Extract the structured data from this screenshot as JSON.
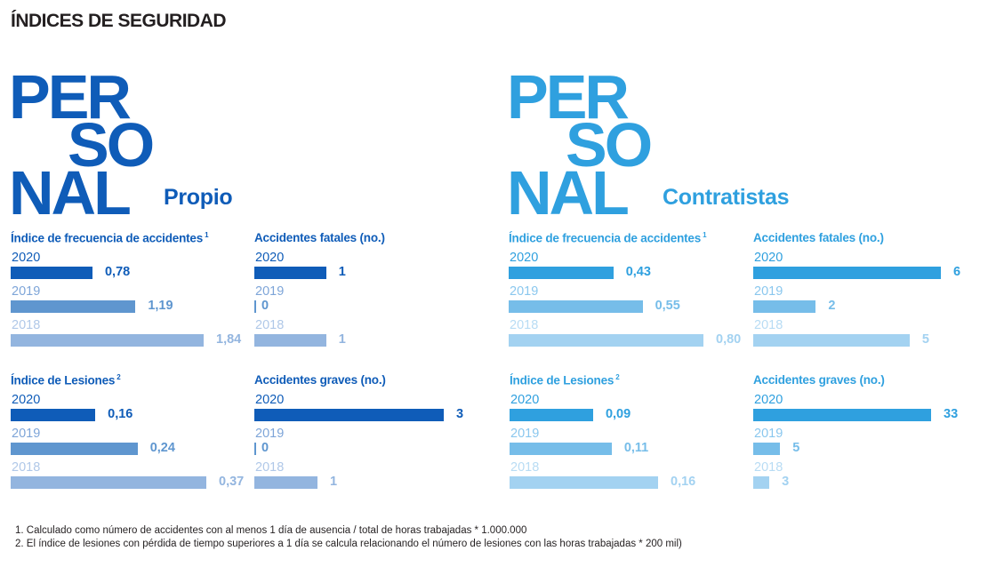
{
  "page": {
    "title": "ÍNDICES DE SEGURIDAD"
  },
  "colors": {
    "propio": [
      "#0f5cb8",
      "#5f96cf",
      "#93b5df"
    ],
    "contratistas": [
      "#2fa0df",
      "#76bde9",
      "#a3d2f1"
    ],
    "propio_year": [
      "#0f5cb8",
      "#7ea5d8",
      "#b0c8e8"
    ],
    "contratistas_year": [
      "#2fa0df",
      "#8ac7ee",
      "#b8dcf4"
    ]
  },
  "panels": [
    {
      "id": "propio",
      "big_word": [
        "PER",
        "SO",
        "NAL"
      ],
      "subtitle": "Propio",
      "color": "#0f5cb8"
    },
    {
      "id": "contratistas",
      "big_word": [
        "PER",
        "SO",
        "NAL"
      ],
      "subtitle": "Contratistas",
      "color": "#2fa0df"
    }
  ],
  "chart_data": [
    {
      "type": "bar",
      "panel": "Propio",
      "title": "Índice de frecuencia de accidentes",
      "footnote_mark": "1",
      "categories": [
        "2020",
        "2019",
        "2018"
      ],
      "values": [
        0.78,
        1.19,
        1.84
      ],
      "labels": [
        "0,78",
        "1,19",
        "1,84"
      ],
      "xlim": [
        0,
        1.84
      ]
    },
    {
      "type": "bar",
      "panel": "Propio",
      "title": "Accidentes fatales (no.)",
      "footnote_mark": "",
      "categories": [
        "2020",
        "2019",
        "2018"
      ],
      "values": [
        1,
        0,
        1
      ],
      "labels": [
        "1",
        "0",
        "1"
      ],
      "xlim": [
        0,
        2.6
      ]
    },
    {
      "type": "bar",
      "panel": "Propio",
      "title": "Índice de Lesiones",
      "footnote_mark": "2",
      "categories": [
        "2020",
        "2019",
        "2018"
      ],
      "values": [
        0.16,
        0.24,
        0.37
      ],
      "labels": [
        "0,16",
        "0,24",
        "0,37"
      ],
      "xlim": [
        0,
        0.37
      ]
    },
    {
      "type": "bar",
      "panel": "Propio",
      "title": "Accidentes graves (no.)",
      "footnote_mark": "",
      "categories": [
        "2020",
        "2019",
        "2018"
      ],
      "values": [
        3,
        0,
        1
      ],
      "labels": [
        "3",
        "0",
        "1"
      ],
      "xlim": [
        0,
        3
      ]
    },
    {
      "type": "bar",
      "panel": "Contratistas",
      "title": "Índice de frecuencia de accidentes",
      "footnote_mark": "1",
      "categories": [
        "2020",
        "2019",
        "2018"
      ],
      "values": [
        0.43,
        0.55,
        0.8
      ],
      "labels": [
        "0,43",
        "0,55",
        "0,80"
      ],
      "xlim": [
        0,
        0.8
      ]
    },
    {
      "type": "bar",
      "panel": "Contratistas",
      "title": "Accidentes fatales (no.)",
      "footnote_mark": "",
      "categories": [
        "2020",
        "2019",
        "2018"
      ],
      "values": [
        6,
        2,
        5
      ],
      "labels": [
        "6",
        "2",
        "5"
      ],
      "xlim": [
        0,
        6
      ]
    },
    {
      "type": "bar",
      "panel": "Contratistas",
      "title": "Índice de Lesiones",
      "footnote_mark": "2",
      "categories": [
        "2020",
        "2019",
        "2018"
      ],
      "values": [
        0.09,
        0.11,
        0.16
      ],
      "labels": [
        "0,09",
        "0,11",
        "0,16"
      ],
      "xlim": [
        0,
        0.16
      ]
    },
    {
      "type": "bar",
      "panel": "Contratistas",
      "title": "Accidentes graves (no.)",
      "footnote_mark": "",
      "categories": [
        "2020",
        "2019",
        "2018"
      ],
      "values": [
        33,
        5,
        3
      ],
      "labels": [
        "33",
        "5",
        "3"
      ],
      "xlim": [
        0,
        33
      ]
    }
  ],
  "footnotes": [
    "1. Calculado como número de accidentes con al menos 1 día de ausencia / total de horas trabajadas * 1.000.000",
    "2. El índice de lesiones con pérdida de tiempo superiores a 1 día se calcula relacionando el número de lesiones con las horas trabajadas * 200 mil)"
  ]
}
